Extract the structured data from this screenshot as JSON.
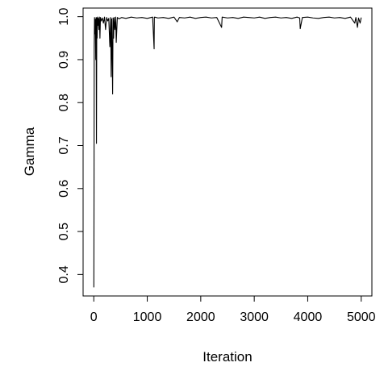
{
  "chart_data": {
    "type": "line",
    "title": "",
    "xlabel": "Iteration",
    "ylabel": "Gamma",
    "xlim": [
      -200,
      5200
    ],
    "ylim": [
      0.35,
      1.02
    ],
    "xticks": [
      0,
      1000,
      2000,
      3000,
      4000,
      5000
    ],
    "xtick_labels": [
      "0",
      "1000",
      "2000",
      "3000",
      "4000",
      "5000"
    ],
    "yticks": [
      0.4,
      0.5,
      0.6,
      0.7,
      0.8,
      0.9,
      1.0
    ],
    "ytick_labels": [
      "0.4",
      "0.5",
      "0.6",
      "0.7",
      "0.8",
      "0.9",
      "1.0"
    ],
    "grid": false,
    "legend": "none",
    "line_color": "#000000",
    "series": [
      {
        "x": [
          1,
          3,
          8,
          14,
          20,
          28,
          36,
          44,
          50,
          56,
          62,
          70,
          78,
          86,
          95,
          105,
          115,
          125,
          140,
          160,
          180,
          200,
          220,
          240,
          260,
          280,
          300,
          315,
          325,
          335,
          345,
          352,
          360,
          370,
          380,
          395,
          410,
          420,
          440,
          470,
          520,
          600,
          700,
          800,
          900,
          1000,
          1100,
          1128,
          1132,
          1136,
          1200,
          1300,
          1400,
          1500,
          1560,
          1600,
          1700,
          1800,
          1900,
          2000,
          2100,
          2200,
          2300,
          2390,
          2400,
          2500,
          2600,
          2700,
          2800,
          2900,
          3000,
          3100,
          3200,
          3300,
          3400,
          3500,
          3600,
          3700,
          3800,
          3850,
          3860,
          3900,
          4000,
          4100,
          4200,
          4300,
          4400,
          4500,
          4600,
          4700,
          4800,
          4880,
          4900,
          4930,
          4950,
          4980,
          5000
        ],
        "y": [
          0.37,
          0.47,
          0.93,
          0.998,
          0.96,
          0.994,
          0.9,
          0.998,
          0.705,
          0.997,
          0.95,
          0.999,
          0.98,
          0.996,
          0.97,
          0.999,
          0.95,
          0.998,
          0.99,
          0.997,
          0.985,
          0.999,
          0.97,
          0.998,
          0.99,
          0.996,
          0.93,
          0.998,
          0.86,
          0.995,
          0.9,
          0.82,
          0.997,
          0.95,
          0.998,
          0.97,
          0.999,
          0.94,
          0.998,
          0.995,
          0.998,
          0.996,
          0.999,
          0.997,
          0.998,
          0.996,
          0.999,
          0.925,
          0.998,
          0.999,
          0.997,
          0.998,
          0.996,
          0.999,
          0.988,
          0.998,
          0.997,
          0.999,
          0.996,
          0.998,
          0.999,
          0.997,
          0.998,
          0.975,
          0.999,
          0.997,
          0.998,
          0.996,
          0.999,
          0.998,
          0.997,
          0.999,
          0.996,
          0.998,
          0.999,
          0.997,
          0.998,
          0.996,
          0.999,
          0.997,
          0.972,
          0.998,
          0.999,
          0.997,
          0.996,
          0.998,
          0.999,
          0.997,
          0.998,
          0.996,
          0.999,
          0.985,
          0.998,
          0.975,
          0.997,
          0.985,
          0.998
        ]
      }
    ]
  }
}
